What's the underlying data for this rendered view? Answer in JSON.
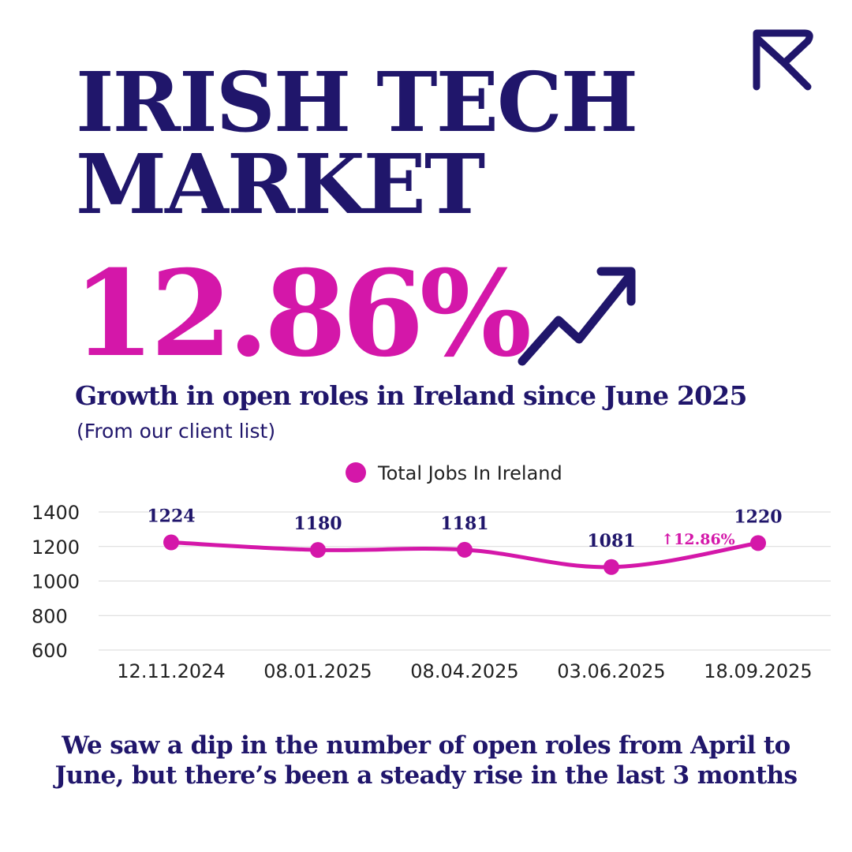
{
  "title": {
    "line1": "IRISH TECH",
    "line2": "MARKET"
  },
  "headline_stat": "12.86%",
  "subtitle": "Growth in open roles in Ireland since June 2025",
  "note": "(From our client list)",
  "icons": {
    "logo": "brand-logo-icon",
    "trend": "trending-up-arrow-icon"
  },
  "colors": {
    "navy": "#20166b",
    "magenta": "#d417a9",
    "grid": "#d9d9d9",
    "tick_text": "#222222"
  },
  "chart_data": {
    "type": "line",
    "categories": [
      "12.11.2024",
      "08.01.2025",
      "08.04.2025",
      "03.06.2025",
      "18.09.2025"
    ],
    "series": [
      {
        "name": "Total Jobs In Ireland",
        "values": [
          1224,
          1180,
          1181,
          1081,
          1220
        ]
      }
    ],
    "data_labels": [
      "1224",
      "1180",
      "1181",
      "1081",
      "1220"
    ],
    "annotation": "↑12.86%",
    "yticks": [
      "1400",
      "1200",
      "1000",
      "800",
      "600"
    ],
    "ylim": [
      600,
      1400
    ],
    "grid": true,
    "legend_position": "top-center"
  },
  "footer": {
    "line1": "We saw a dip in the number of open roles from April to",
    "line2": "June, but there’s been a steady rise in the last 3 months"
  }
}
